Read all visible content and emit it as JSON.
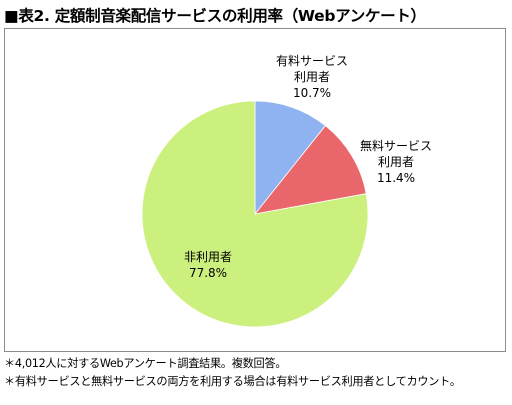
{
  "title": "■表2. 定額制音楽配信サービスの利用率（Webアンケート）",
  "chart_data": {
    "type": "pie",
    "slices": [
      {
        "lines": [
          "有料サービス",
          "利用者"
        ],
        "value": 10.7,
        "display": "10.7%",
        "color": "#8fb3f0"
      },
      {
        "lines": [
          "無料サービス",
          "利用者"
        ],
        "value": 11.4,
        "display": "11.4%",
        "color": "#e9676b"
      },
      {
        "lines": [
          "非利用者"
        ],
        "value": 77.8,
        "display": "77.8%",
        "color": "#ccf07e"
      }
    ],
    "start": "12 o'clock",
    "direction": "clockwise",
    "legend": "none"
  },
  "notes": [
    "＊4,012人に対するWebアンケート調査結果。複数回答。",
    "＊有料サービスと無料サービスの両方を利用する場合は有料サービス利用者としてカウント。"
  ]
}
